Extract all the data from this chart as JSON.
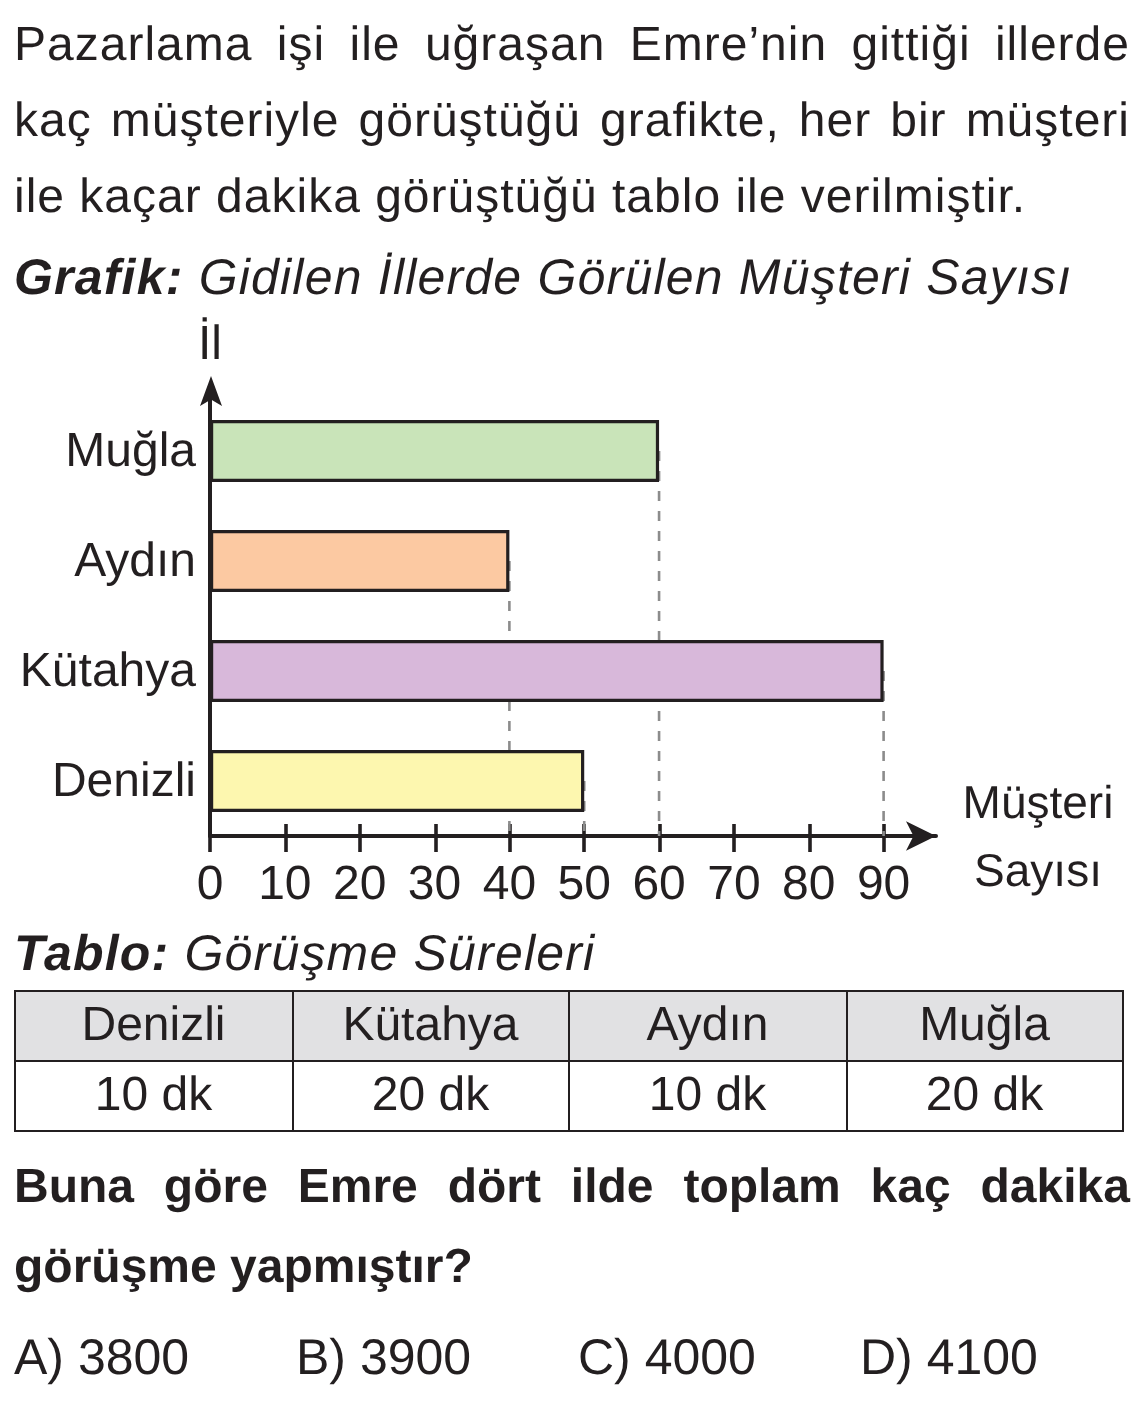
{
  "chart_data": [
    {
      "type": "bar",
      "orientation": "horizontal",
      "title": "Grafik: Gidilen İllerde Görülen Müşteri Sayısı",
      "ylabel": "İl",
      "xlabel": "Müşteri Sayısı",
      "categories": [
        "Muğla",
        "Aydın",
        "Kütahya",
        "Denizli"
      ],
      "values": [
        60,
        40,
        90,
        50
      ],
      "colors": [
        "#c9e4b9",
        "#fcc9a2",
        "#d8b8da",
        "#fdf7af"
      ],
      "xlim": [
        0,
        97
      ],
      "xticks": [
        0,
        10,
        20,
        30,
        40,
        50,
        60,
        70,
        80,
        90
      ],
      "ref_lines": [
        {
          "axis": "x",
          "value": 60,
          "color": "#8c8c8c",
          "line_style": "dashed"
        },
        {
          "axis": "x",
          "value": 40,
          "color": "#8c8c8c",
          "line_style": "dashed"
        },
        {
          "axis": "x",
          "value": 90,
          "color": "#8c8c8c",
          "line_style": "dashed"
        },
        {
          "axis": "x",
          "value": 50,
          "color": "#8c8c8c",
          "line_style": "dashed"
        }
      ],
      "annotations": [
        "Pazarlama işi ile uğraşan Emre’nin gittiği illerde kaç müşteriyle görüştüğü grafikte, her bir müşteri ile kaçar dakika görüştüğü tablo ile verilmiştir."
      ]
    },
    {
      "type": "other",
      "title": "Tablo: Görüşme Süreleri",
      "categories": [
        "Denizli",
        "Kütahya",
        "Aydın",
        "Muğla"
      ],
      "values": [
        10,
        20,
        10,
        20
      ],
      "value_labels": [
        "10 dk",
        "20 dk",
        "10 dk",
        "20 dk"
      ],
      "annotations": [
        "Buna göre Emre dört ilde toplam kaç dakika görüşme yapmıştır?",
        "A) 3800\tB) 3900\tC) 4000\tD) 4100"
      ]
    }
  ]
}
